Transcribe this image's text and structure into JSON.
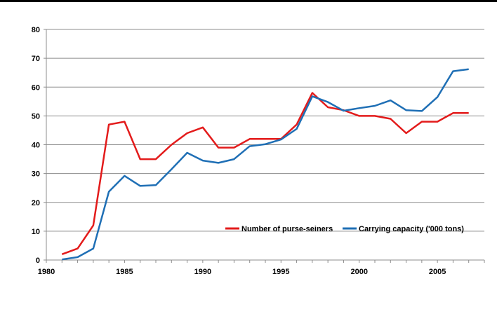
{
  "chart_data": {
    "type": "line",
    "title": "",
    "xlabel": "",
    "ylabel": "",
    "xlim": [
      1980,
      2008
    ],
    "ylim": [
      0,
      80
    ],
    "x_ticks": [
      1980,
      1985,
      1990,
      1995,
      2000,
      2005
    ],
    "y_ticks": [
      0,
      10,
      20,
      30,
      40,
      50,
      60,
      70,
      80
    ],
    "grid": "horizontal",
    "legend_position": "lower-right",
    "x": [
      1981,
      1982,
      1983,
      1984,
      1985,
      1986,
      1987,
      1988,
      1989,
      1990,
      1991,
      1992,
      1993,
      1994,
      1995,
      1996,
      1997,
      1998,
      1999,
      2000,
      2001,
      2002,
      2003,
      2004,
      2005,
      2006,
      2007
    ],
    "series": [
      {
        "name": "Number of purse-seiners",
        "color": "#e31b1b",
        "values": [
          2,
          4,
          12,
          47,
          48,
          35,
          35,
          40,
          44,
          46,
          39,
          39,
          42,
          42,
          42,
          47,
          58,
          53,
          52,
          50,
          50,
          49,
          44,
          48,
          48,
          51,
          51
        ]
      },
      {
        "name": "Carrying capacity ('000 tons)",
        "color": "#1f6fb5",
        "values": [
          0.2,
          1,
          4,
          23.7,
          29.2,
          25.7,
          26,
          31.5,
          37.2,
          34.5,
          33.7,
          35,
          39.5,
          40.2,
          41.8,
          45.5,
          56.8,
          54.8,
          51.8,
          52.7,
          53.5,
          55.4,
          52,
          51.7,
          56.5,
          65.5,
          66.2
        ]
      }
    ]
  }
}
